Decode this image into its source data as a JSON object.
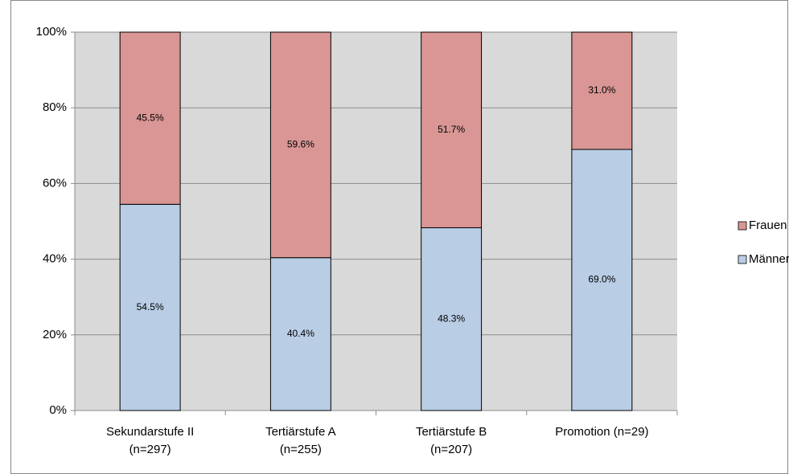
{
  "chart_data": {
    "type": "bar",
    "stacked": true,
    "categories": [
      [
        "Sekundarstufe II",
        "(n=297)"
      ],
      [
        "Tertiärstufe A",
        "(n=255)"
      ],
      [
        "Tertiärstufe B",
        "(n=207)"
      ],
      [
        "Promotion (n=29)"
      ]
    ],
    "series": [
      {
        "name": "Männer",
        "color": "#b9cde5",
        "values": [
          54.5,
          40.4,
          48.3,
          69.0
        ],
        "value_labels": [
          "54.5%",
          "40.4%",
          "48.3%",
          "69.0%"
        ]
      },
      {
        "name": "Frauen",
        "color": "#d99694",
        "values": [
          45.5,
          59.6,
          51.7,
          31.0
        ],
        "value_labels": [
          "45.5%",
          "59.6%",
          "51.7%",
          "31.0%"
        ]
      }
    ],
    "ylim": [
      0,
      100
    ],
    "yticks": [
      {
        "value": 0,
        "label": "0%"
      },
      {
        "value": 20,
        "label": "20%"
      },
      {
        "value": 40,
        "label": "40%"
      },
      {
        "value": 60,
        "label": "60%"
      },
      {
        "value": 80,
        "label": "80%"
      },
      {
        "value": 100,
        "label": "100%"
      }
    ],
    "grid": true,
    "legend": "right"
  }
}
